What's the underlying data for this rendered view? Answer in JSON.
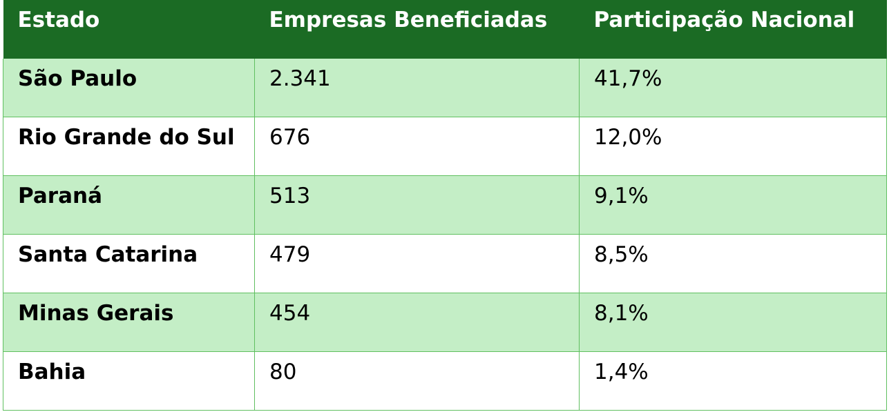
{
  "table": {
    "headers": [
      "Estado",
      "Empresas Beneficiadas",
      "Participação Nacional"
    ],
    "rows": [
      [
        "São Paulo",
        "2.341",
        "41,7%"
      ],
      [
        "Rio Grande do Sul",
        "676",
        "12,0%"
      ],
      [
        "Paraná",
        "513",
        "9,1%"
      ],
      [
        "Santa Catarina",
        "479",
        "8,5%"
      ],
      [
        "Minas Gerais",
        "454",
        "8,1%"
      ],
      [
        "Bahia",
        "80",
        "1,4%"
      ]
    ]
  },
  "colors": {
    "header_bg": "#1b6b24",
    "header_text": "#ffffff",
    "stripe_bg": "#c4eec6",
    "border": "#5fbf5f"
  }
}
